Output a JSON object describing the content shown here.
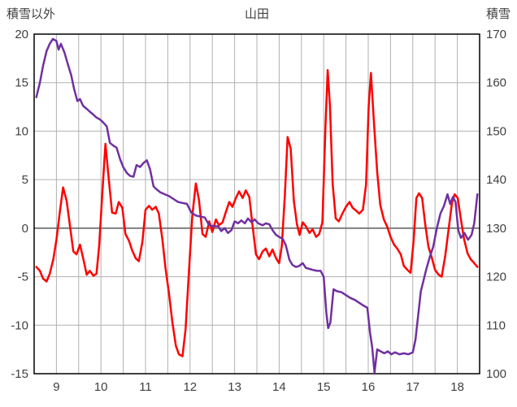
{
  "chart_data": {
    "type": "line",
    "title": "山田",
    "left_axis": {
      "label": "積雪以外",
      "min": -15,
      "max": 20,
      "tick_step": 5,
      "ticks": [
        20,
        15,
        10,
        5,
        0,
        -5,
        -10,
        -15
      ]
    },
    "right_axis": {
      "label": "積雪",
      "min": 100,
      "max": 170,
      "tick_step": 10,
      "ticks": [
        170,
        160,
        150,
        140,
        130,
        120,
        110,
        100
      ]
    },
    "x_axis": {
      "min": 8.5,
      "max": 18.5,
      "minor_grid_step": 0.5,
      "tick_labels": [
        9,
        10,
        11,
        12,
        13,
        14,
        15,
        16,
        17,
        18
      ]
    },
    "colors": {
      "red_series": "#FF0000",
      "purple_series": "#7030A0",
      "grid": "#B0B0B0",
      "zero_line": "#808080",
      "border": "#000000",
      "text": "#404040"
    },
    "grid": "on",
    "legend": "none",
    "series": [
      {
        "name": "red-left-axis-series",
        "axis": "left",
        "color_key": "red_series",
        "points": [
          [
            8.55,
            -4.0
          ],
          [
            8.63,
            -4.4
          ],
          [
            8.7,
            -5.2
          ],
          [
            8.78,
            -5.5
          ],
          [
            8.85,
            -4.7
          ],
          [
            8.93,
            -3.2
          ],
          [
            9.0,
            -1.2
          ],
          [
            9.08,
            1.8
          ],
          [
            9.15,
            4.2
          ],
          [
            9.23,
            2.8
          ],
          [
            9.3,
            0.4
          ],
          [
            9.38,
            -2.4
          ],
          [
            9.45,
            -2.7
          ],
          [
            9.53,
            -1.7
          ],
          [
            9.6,
            -3.1
          ],
          [
            9.68,
            -4.8
          ],
          [
            9.75,
            -4.4
          ],
          [
            9.83,
            -4.9
          ],
          [
            9.9,
            -4.7
          ],
          [
            9.96,
            -1.8
          ],
          [
            10.03,
            3.5
          ],
          [
            10.1,
            8.7
          ],
          [
            10.18,
            4.8
          ],
          [
            10.25,
            1.6
          ],
          [
            10.33,
            1.5
          ],
          [
            10.4,
            2.7
          ],
          [
            10.48,
            2.1
          ],
          [
            10.55,
            -0.6
          ],
          [
            10.63,
            -1.3
          ],
          [
            10.7,
            -2.3
          ],
          [
            10.78,
            -3.1
          ],
          [
            10.85,
            -3.4
          ],
          [
            10.93,
            -1.4
          ],
          [
            11.0,
            1.9
          ],
          [
            11.08,
            2.3
          ],
          [
            11.15,
            1.9
          ],
          [
            11.23,
            2.2
          ],
          [
            11.3,
            1.5
          ],
          [
            11.38,
            -1.2
          ],
          [
            11.45,
            -4.2
          ],
          [
            11.53,
            -6.8
          ],
          [
            11.6,
            -9.6
          ],
          [
            11.68,
            -12.1
          ],
          [
            11.75,
            -13.0
          ],
          [
            11.83,
            -13.2
          ],
          [
            11.9,
            -10.4
          ],
          [
            11.97,
            -4.8
          ],
          [
            12.05,
            1.2
          ],
          [
            12.13,
            4.6
          ],
          [
            12.2,
            2.9
          ],
          [
            12.28,
            -0.6
          ],
          [
            12.35,
            -0.9
          ],
          [
            12.43,
            0.7
          ],
          [
            12.5,
            -0.4
          ],
          [
            12.58,
            0.9
          ],
          [
            12.65,
            0.3
          ],
          [
            12.73,
            0.6
          ],
          [
            12.8,
            1.6
          ],
          [
            12.88,
            2.7
          ],
          [
            12.95,
            2.2
          ],
          [
            13.03,
            3.1
          ],
          [
            13.1,
            3.8
          ],
          [
            13.18,
            3.1
          ],
          [
            13.25,
            3.9
          ],
          [
            13.33,
            3.2
          ],
          [
            13.4,
            0.4
          ],
          [
            13.48,
            -2.7
          ],
          [
            13.55,
            -3.2
          ],
          [
            13.63,
            -2.4
          ],
          [
            13.7,
            -2.1
          ],
          [
            13.78,
            -2.9
          ],
          [
            13.85,
            -2.2
          ],
          [
            13.93,
            -3.1
          ],
          [
            14.0,
            -3.6
          ],
          [
            14.06,
            -1.8
          ],
          [
            14.13,
            3.5
          ],
          [
            14.19,
            9.4
          ],
          [
            14.26,
            8.2
          ],
          [
            14.33,
            2.8
          ],
          [
            14.4,
            0.4
          ],
          [
            14.46,
            -0.7
          ],
          [
            14.53,
            0.6
          ],
          [
            14.6,
            0.2
          ],
          [
            14.68,
            -0.5
          ],
          [
            14.75,
            -0.1
          ],
          [
            14.83,
            -0.9
          ],
          [
            14.9,
            -0.6
          ],
          [
            14.97,
            0.6
          ],
          [
            15.04,
            10.5
          ],
          [
            15.09,
            16.3
          ],
          [
            15.14,
            12.6
          ],
          [
            15.2,
            4.6
          ],
          [
            15.27,
            1.0
          ],
          [
            15.34,
            0.7
          ],
          [
            15.42,
            1.5
          ],
          [
            15.5,
            2.2
          ],
          [
            15.58,
            2.7
          ],
          [
            15.65,
            2.1
          ],
          [
            15.73,
            1.8
          ],
          [
            15.8,
            1.5
          ],
          [
            15.88,
            1.9
          ],
          [
            15.95,
            4.5
          ],
          [
            16.01,
            12.5
          ],
          [
            16.06,
            16.0
          ],
          [
            16.13,
            10.8
          ],
          [
            16.2,
            5.8
          ],
          [
            16.27,
            2.4
          ],
          [
            16.35,
            0.9
          ],
          [
            16.43,
            0.1
          ],
          [
            16.5,
            -0.9
          ],
          [
            16.58,
            -1.7
          ],
          [
            16.65,
            -2.1
          ],
          [
            16.73,
            -2.7
          ],
          [
            16.8,
            -3.9
          ],
          [
            16.88,
            -4.3
          ],
          [
            16.95,
            -4.6
          ],
          [
            17.02,
            -1.2
          ],
          [
            17.08,
            3.1
          ],
          [
            17.14,
            3.6
          ],
          [
            17.21,
            3.1
          ],
          [
            17.28,
            0.4
          ],
          [
            17.35,
            -1.9
          ],
          [
            17.43,
            -3.1
          ],
          [
            17.5,
            -4.3
          ],
          [
            17.58,
            -4.8
          ],
          [
            17.65,
            -5.0
          ],
          [
            17.73,
            -2.8
          ],
          [
            17.8,
            -0.3
          ],
          [
            17.88,
            2.6
          ],
          [
            17.94,
            3.5
          ],
          [
            18.01,
            3.1
          ],
          [
            18.08,
            0.9
          ],
          [
            18.15,
            -1.1
          ],
          [
            18.23,
            -2.6
          ],
          [
            18.3,
            -3.2
          ],
          [
            18.38,
            -3.6
          ],
          [
            18.45,
            -4.0
          ]
        ]
      },
      {
        "name": "purple-right-axis-series",
        "axis": "right",
        "color_key": "purple_series",
        "points": [
          [
            8.55,
            157
          ],
          [
            8.63,
            160
          ],
          [
            8.7,
            163.5
          ],
          [
            8.78,
            166.5
          ],
          [
            8.85,
            168
          ],
          [
            8.92,
            169
          ],
          [
            9.0,
            168.6
          ],
          [
            9.05,
            166.8
          ],
          [
            9.1,
            168
          ],
          [
            9.18,
            166.2
          ],
          [
            9.25,
            164
          ],
          [
            9.33,
            161.6
          ],
          [
            9.4,
            158.6
          ],
          [
            9.47,
            156.2
          ],
          [
            9.53,
            156.6
          ],
          [
            9.6,
            155.2
          ],
          [
            9.68,
            154.6
          ],
          [
            9.75,
            154
          ],
          [
            9.83,
            153.4
          ],
          [
            9.9,
            152.8
          ],
          [
            9.98,
            152.4
          ],
          [
            10.05,
            151.8
          ],
          [
            10.13,
            151
          ],
          [
            10.2,
            147.6
          ],
          [
            10.28,
            147
          ],
          [
            10.35,
            146.6
          ],
          [
            10.43,
            144.2
          ],
          [
            10.5,
            142.6
          ],
          [
            10.58,
            141.4
          ],
          [
            10.65,
            140.8
          ],
          [
            10.73,
            140.6
          ],
          [
            10.8,
            143
          ],
          [
            10.88,
            142.6
          ],
          [
            10.95,
            143.4
          ],
          [
            11.03,
            144
          ],
          [
            11.1,
            142.2
          ],
          [
            11.18,
            138.6
          ],
          [
            11.25,
            138
          ],
          [
            11.33,
            137.4
          ],
          [
            11.43,
            137
          ],
          [
            11.53,
            136.6
          ],
          [
            11.63,
            136
          ],
          [
            11.73,
            135.4
          ],
          [
            11.83,
            135.2
          ],
          [
            11.93,
            135
          ],
          [
            12.03,
            133.2
          ],
          [
            12.13,
            132.6
          ],
          [
            12.23,
            132.4
          ],
          [
            12.33,
            132.2
          ],
          [
            12.43,
            130.6
          ],
          [
            12.53,
            130.4
          ],
          [
            12.63,
            130.4
          ],
          [
            12.7,
            129.4
          ],
          [
            12.78,
            130
          ],
          [
            12.85,
            129
          ],
          [
            12.93,
            129.6
          ],
          [
            13.0,
            131.4
          ],
          [
            13.08,
            131
          ],
          [
            13.15,
            131.6
          ],
          [
            13.23,
            131
          ],
          [
            13.3,
            132
          ],
          [
            13.38,
            131.2
          ],
          [
            13.45,
            131.8
          ],
          [
            13.53,
            131
          ],
          [
            13.63,
            130.6
          ],
          [
            13.7,
            131
          ],
          [
            13.78,
            130.8
          ],
          [
            13.85,
            129.6
          ],
          [
            13.93,
            128.6
          ],
          [
            14.0,
            128.2
          ],
          [
            14.08,
            127.8
          ],
          [
            14.15,
            126.5
          ],
          [
            14.23,
            123.5
          ],
          [
            14.3,
            122.4
          ],
          [
            14.38,
            122
          ],
          [
            14.45,
            122.2
          ],
          [
            14.53,
            122.8
          ],
          [
            14.6,
            121.8
          ],
          [
            14.68,
            121.6
          ],
          [
            14.75,
            121.4
          ],
          [
            14.85,
            121.2
          ],
          [
            14.93,
            121.2
          ],
          [
            15.0,
            120
          ],
          [
            15.06,
            112.5
          ],
          [
            15.1,
            109.4
          ],
          [
            15.15,
            110.5
          ],
          [
            15.22,
            117.4
          ],
          [
            15.3,
            117
          ],
          [
            15.4,
            116.8
          ],
          [
            15.5,
            116.2
          ],
          [
            15.6,
            115.6
          ],
          [
            15.7,
            115.2
          ],
          [
            15.8,
            114.6
          ],
          [
            15.9,
            114
          ],
          [
            15.98,
            113.6
          ],
          [
            16.04,
            108.5
          ],
          [
            16.09,
            105.4
          ],
          [
            16.14,
            100.2
          ],
          [
            16.2,
            105
          ],
          [
            16.28,
            104.6
          ],
          [
            16.36,
            104.2
          ],
          [
            16.44,
            104.6
          ],
          [
            16.52,
            104
          ],
          [
            16.6,
            104.4
          ],
          [
            16.7,
            104
          ],
          [
            16.8,
            104.2
          ],
          [
            16.9,
            104
          ],
          [
            17.0,
            104.4
          ],
          [
            17.06,
            107
          ],
          [
            17.12,
            112
          ],
          [
            17.18,
            117
          ],
          [
            17.24,
            119.2
          ],
          [
            17.3,
            121.4
          ],
          [
            17.38,
            124
          ],
          [
            17.46,
            126.2
          ],
          [
            17.54,
            130
          ],
          [
            17.62,
            133
          ],
          [
            17.7,
            134.6
          ],
          [
            17.78,
            137
          ],
          [
            17.84,
            135
          ],
          [
            17.9,
            136.4
          ],
          [
            17.96,
            135.4
          ],
          [
            18.02,
            129.6
          ],
          [
            18.08,
            128
          ],
          [
            18.16,
            129
          ],
          [
            18.24,
            127.6
          ],
          [
            18.32,
            128.6
          ],
          [
            18.38,
            131
          ],
          [
            18.45,
            137
          ]
        ]
      }
    ]
  }
}
